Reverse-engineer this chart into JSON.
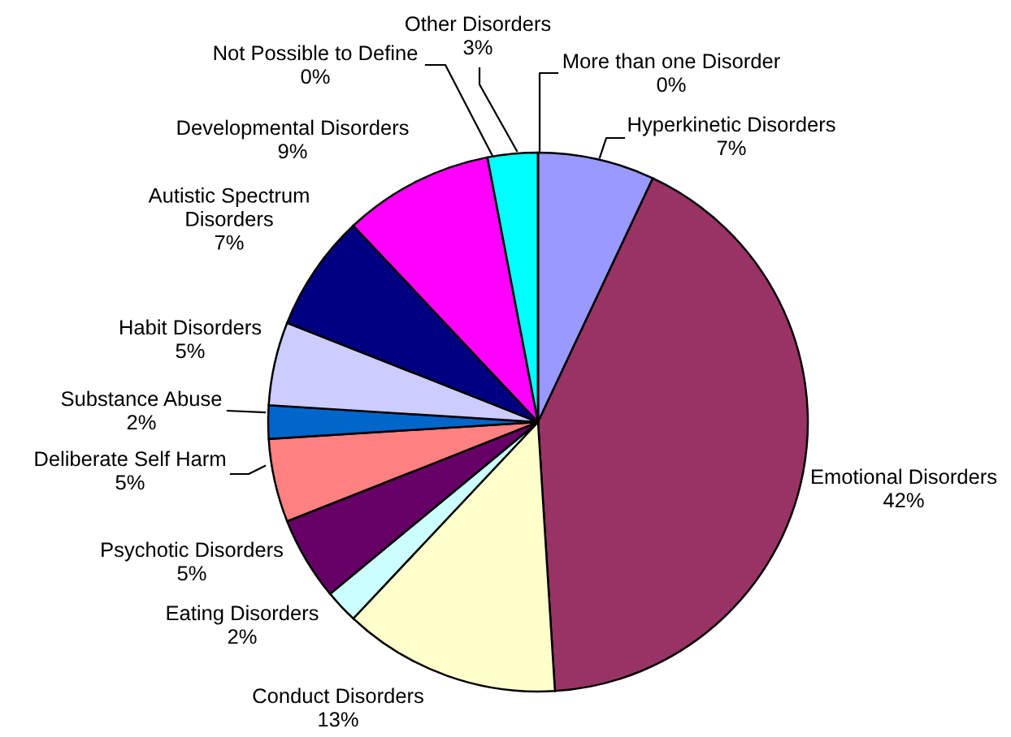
{
  "chart_data": {
    "type": "pie",
    "categories": [
      "Hyperkinetic Disorders",
      "Emotional Disorders",
      "Conduct Disorders",
      "Eating Disorders",
      "Psychotic Disorders",
      "Deliberate Self Harm",
      "Substance Abuse",
      "Habit Disorders",
      "Autistic Spectrum Disorders",
      "Developmental Disorders",
      "Not Possible to Define",
      "Other Disorders",
      "More than one Disorder"
    ],
    "values": [
      7,
      42,
      13,
      2,
      5,
      5,
      2,
      5,
      7,
      9,
      0,
      3,
      0
    ],
    "colors": [
      "#9999ff",
      "#993366",
      "#ffffcc",
      "#ccffff",
      "#660066",
      "#ff8080",
      "#0066cc",
      "#ccccff",
      "#000080",
      "#ff00ff",
      "#ffff00",
      "#00ffff",
      "#800080"
    ],
    "value_labels": [
      "7%",
      "42%",
      "13%",
      "2%",
      "5%",
      "5%",
      "2%",
      "5%",
      "7%",
      "9%",
      "0%",
      "3%",
      "0%"
    ]
  }
}
